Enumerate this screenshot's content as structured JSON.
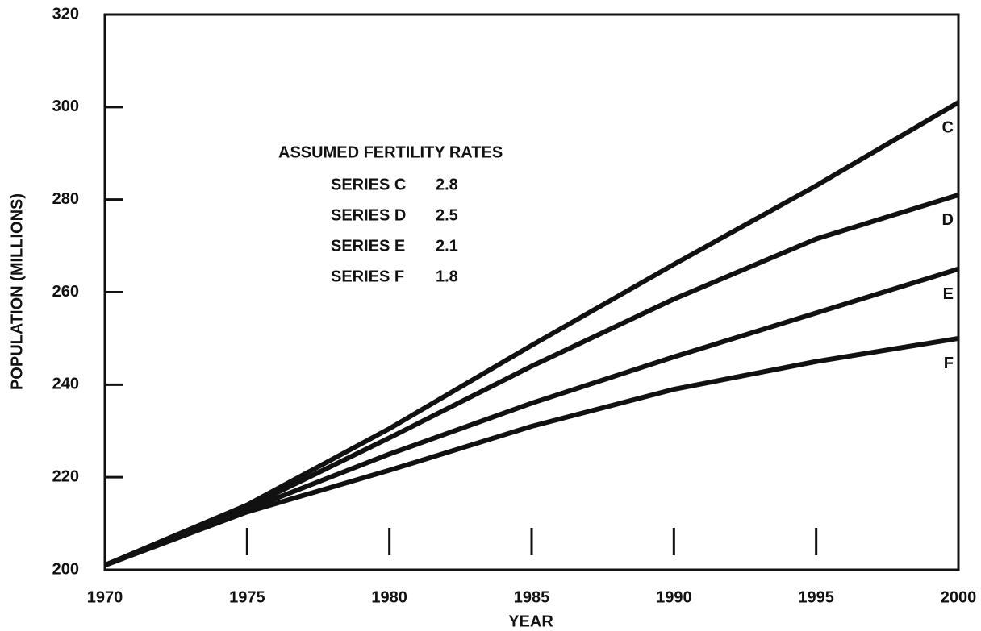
{
  "chart_data": {
    "type": "line",
    "x_label": "YEAR",
    "y_label": "POPULATION (MILLIONS)",
    "x": [
      1970,
      1975,
      1980,
      1985,
      1990,
      1995,
      2000
    ],
    "xlim": [
      1970,
      2000
    ],
    "xticks": [
      1970,
      1975,
      1980,
      1985,
      1990,
      1995,
      2000
    ],
    "ylim": [
      200,
      320
    ],
    "yticks": [
      200,
      220,
      240,
      260,
      280,
      300,
      320
    ],
    "legend_title": "ASSUMED FERTILITY RATES",
    "series": [
      {
        "name": "C",
        "label": "SERIES C",
        "fertility_rate": 2.8,
        "color": "#111111",
        "values": [
          201,
          214,
          230.5,
          248.5,
          266,
          283,
          301
        ]
      },
      {
        "name": "D",
        "label": "SERIES D",
        "fertility_rate": 2.5,
        "color": "#111111",
        "values": [
          201,
          213.5,
          228.5,
          244,
          258.5,
          271.5,
          281
        ]
      },
      {
        "name": "E",
        "label": "SERIES E",
        "fertility_rate": 2.1,
        "color": "#111111",
        "values": [
          201,
          213,
          225,
          236,
          246,
          255.5,
          265
        ]
      },
      {
        "name": "F",
        "label": "SERIES F",
        "fertility_rate": 1.8,
        "color": "#111111",
        "values": [
          201,
          212.5,
          221.5,
          231,
          239,
          245,
          250
        ]
      }
    ]
  }
}
